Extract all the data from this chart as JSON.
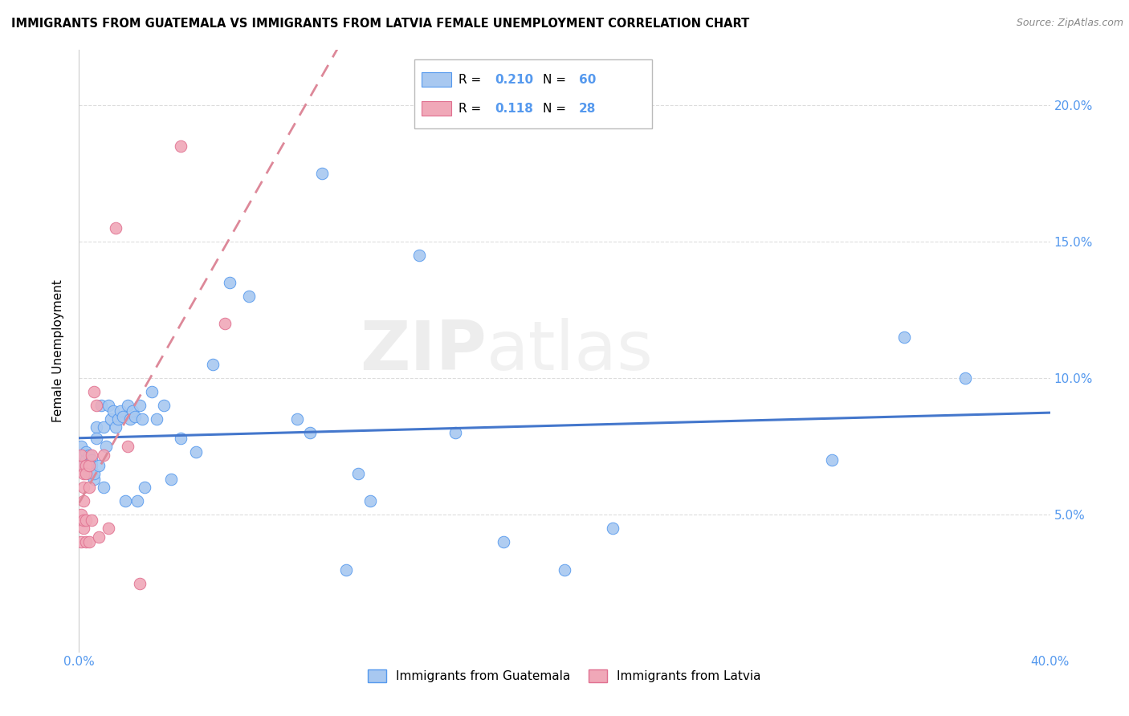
{
  "title": "IMMIGRANTS FROM GUATEMALA VS IMMIGRANTS FROM LATVIA FEMALE UNEMPLOYMENT CORRELATION CHART",
  "source": "Source: ZipAtlas.com",
  "ylabel": "Female Unemployment",
  "xlim": [
    0.0,
    0.4
  ],
  "ylim": [
    0.0,
    0.22
  ],
  "xtick_labels": [
    "0.0%",
    "",
    "",
    "",
    "40.0%"
  ],
  "xtick_vals": [
    0.0,
    0.1,
    0.2,
    0.3,
    0.4
  ],
  "ytick_vals": [
    0.05,
    0.1,
    0.15,
    0.2
  ],
  "right_ytick_labels": [
    "5.0%",
    "10.0%",
    "15.0%",
    "20.0%"
  ],
  "guatemala_color": "#a8c8f0",
  "latvia_color": "#f0a8b8",
  "guatemala_edge_color": "#5599ee",
  "latvia_edge_color": "#e07090",
  "guatemala_line_color": "#4477cc",
  "latvia_line_color": "#dd8899",
  "legend_r_guatemala": "0.210",
  "legend_n_guatemala": "60",
  "legend_r_latvia": "0.118",
  "legend_n_latvia": "28",
  "watermark": "ZIPatlas",
  "guatemala_x": [
    0.001,
    0.002,
    0.002,
    0.003,
    0.003,
    0.003,
    0.004,
    0.004,
    0.004,
    0.005,
    0.005,
    0.005,
    0.006,
    0.006,
    0.007,
    0.007,
    0.008,
    0.009,
    0.01,
    0.01,
    0.011,
    0.012,
    0.013,
    0.014,
    0.015,
    0.016,
    0.017,
    0.018,
    0.019,
    0.02,
    0.021,
    0.022,
    0.023,
    0.024,
    0.025,
    0.026,
    0.027,
    0.03,
    0.032,
    0.035,
    0.038,
    0.042,
    0.048,
    0.055,
    0.062,
    0.07,
    0.09,
    0.095,
    0.1,
    0.11,
    0.115,
    0.12,
    0.14,
    0.155,
    0.175,
    0.2,
    0.22,
    0.31,
    0.34,
    0.365
  ],
  "guatemala_y": [
    0.075,
    0.072,
    0.068,
    0.073,
    0.068,
    0.07,
    0.068,
    0.065,
    0.072,
    0.07,
    0.068,
    0.065,
    0.063,
    0.065,
    0.082,
    0.078,
    0.068,
    0.09,
    0.06,
    0.082,
    0.075,
    0.09,
    0.085,
    0.088,
    0.082,
    0.085,
    0.088,
    0.086,
    0.055,
    0.09,
    0.085,
    0.088,
    0.086,
    0.055,
    0.09,
    0.085,
    0.06,
    0.095,
    0.085,
    0.09,
    0.063,
    0.078,
    0.073,
    0.105,
    0.135,
    0.13,
    0.085,
    0.08,
    0.175,
    0.03,
    0.065,
    0.055,
    0.145,
    0.08,
    0.04,
    0.03,
    0.045,
    0.07,
    0.115,
    0.1
  ],
  "latvia_x": [
    0.001,
    0.001,
    0.001,
    0.001,
    0.002,
    0.002,
    0.002,
    0.002,
    0.002,
    0.003,
    0.003,
    0.003,
    0.003,
    0.004,
    0.004,
    0.004,
    0.005,
    0.005,
    0.006,
    0.007,
    0.008,
    0.01,
    0.012,
    0.015,
    0.02,
    0.025,
    0.042,
    0.06
  ],
  "latvia_y": [
    0.068,
    0.072,
    0.05,
    0.04,
    0.065,
    0.06,
    0.055,
    0.045,
    0.048,
    0.068,
    0.065,
    0.048,
    0.04,
    0.068,
    0.06,
    0.04,
    0.072,
    0.048,
    0.095,
    0.09,
    0.042,
    0.072,
    0.045,
    0.155,
    0.075,
    0.025,
    0.185,
    0.12
  ]
}
